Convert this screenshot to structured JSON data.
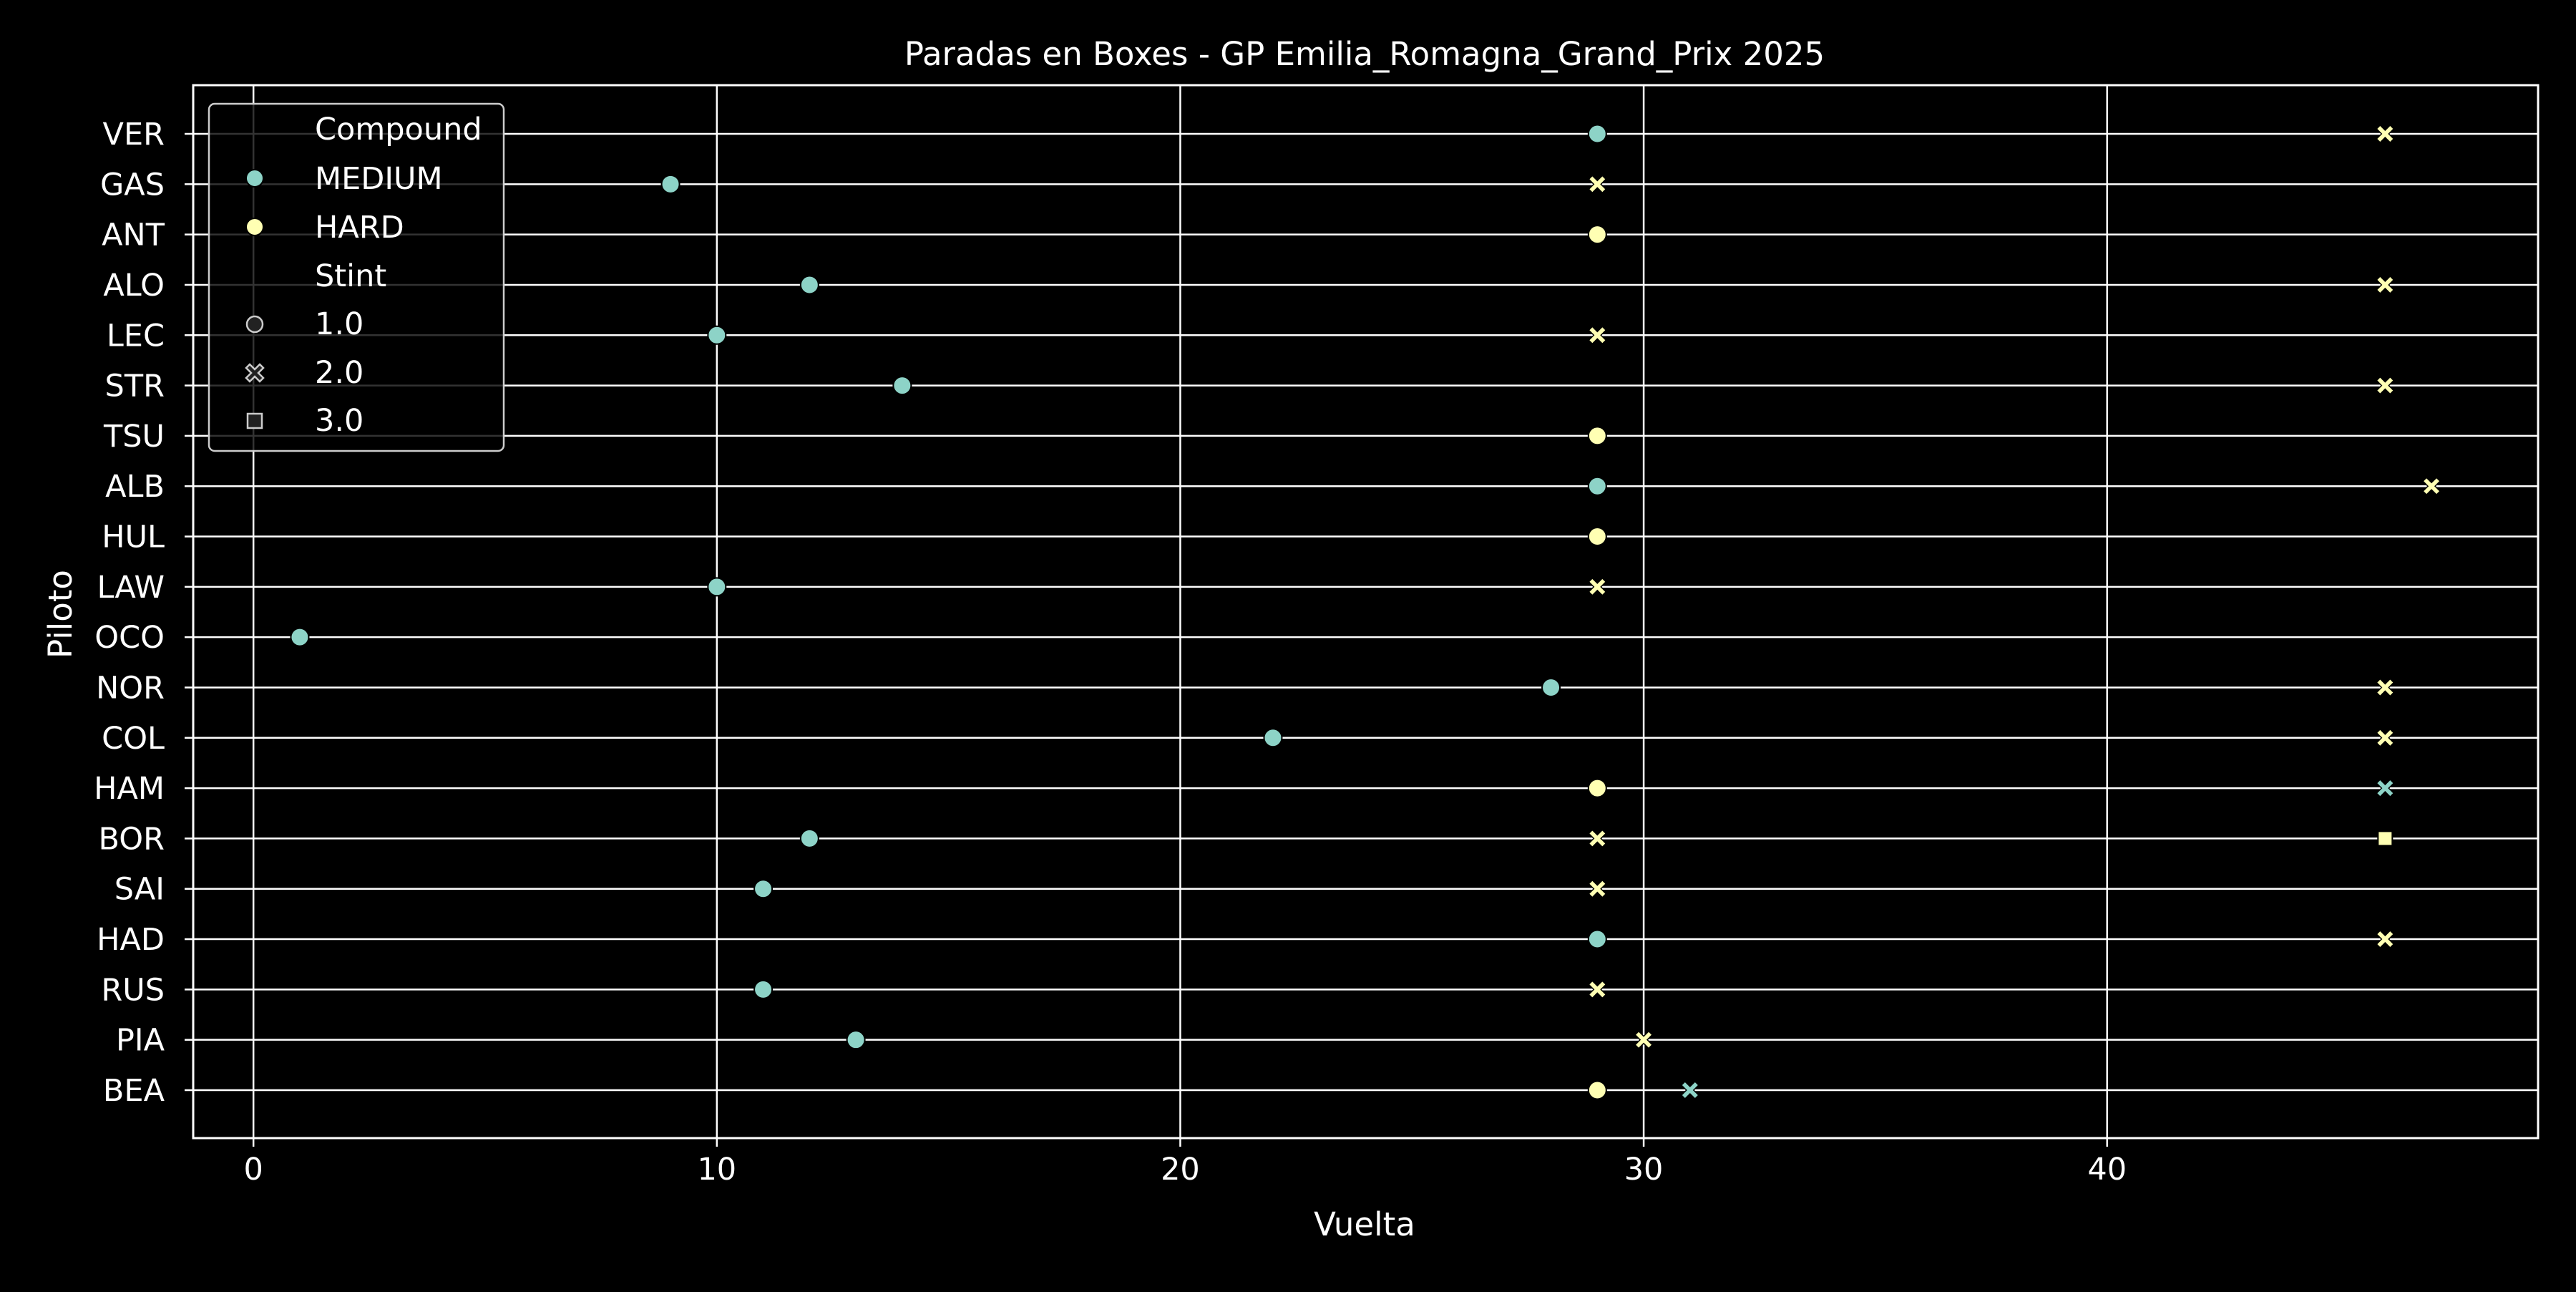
{
  "chart_data": {
    "type": "scatter",
    "title": "Paradas en Boxes - GP Emilia_Romagna_Grand_Prix 2025",
    "xlabel": "Vuelta",
    "ylabel": "Piloto",
    "xlim": [
      -1.3,
      49.3
    ],
    "xticks": [
      0,
      10,
      20,
      30,
      40
    ],
    "drivers": [
      "VER",
      "GAS",
      "ANT",
      "ALO",
      "LEC",
      "STR",
      "TSU",
      "ALB",
      "HUL",
      "LAW",
      "OCO",
      "NOR",
      "COL",
      "HAM",
      "BOR",
      "SAI",
      "HAD",
      "RUS",
      "PIA",
      "BEA"
    ],
    "grid": true,
    "legend": {
      "placement": "top-left",
      "hue_title": "Compound",
      "style_title": "Stint",
      "compounds": [
        {
          "name": "MEDIUM",
          "color": "#8dd3c7"
        },
        {
          "name": "HARD",
          "color": "#ffffb3"
        }
      ],
      "stints": [
        {
          "name": "1.0",
          "marker": "circle"
        },
        {
          "name": "2.0",
          "marker": "x"
        },
        {
          "name": "3.0",
          "marker": "square"
        }
      ]
    },
    "points": [
      {
        "driver": "VER",
        "lap": 29,
        "compound": "MEDIUM",
        "stint": "1.0"
      },
      {
        "driver": "VER",
        "lap": 46,
        "compound": "HARD",
        "stint": "2.0"
      },
      {
        "driver": "GAS",
        "lap": 9,
        "compound": "MEDIUM",
        "stint": "1.0"
      },
      {
        "driver": "GAS",
        "lap": 29,
        "compound": "HARD",
        "stint": "2.0"
      },
      {
        "driver": "ANT",
        "lap": 29,
        "compound": "HARD",
        "stint": "1.0"
      },
      {
        "driver": "ALO",
        "lap": 12,
        "compound": "MEDIUM",
        "stint": "1.0"
      },
      {
        "driver": "ALO",
        "lap": 46,
        "compound": "HARD",
        "stint": "2.0"
      },
      {
        "driver": "LEC",
        "lap": 10,
        "compound": "MEDIUM",
        "stint": "1.0"
      },
      {
        "driver": "LEC",
        "lap": 29,
        "compound": "HARD",
        "stint": "2.0"
      },
      {
        "driver": "STR",
        "lap": 14,
        "compound": "MEDIUM",
        "stint": "1.0"
      },
      {
        "driver": "STR",
        "lap": 46,
        "compound": "HARD",
        "stint": "2.0"
      },
      {
        "driver": "TSU",
        "lap": 29,
        "compound": "HARD",
        "stint": "1.0"
      },
      {
        "driver": "ALB",
        "lap": 29,
        "compound": "MEDIUM",
        "stint": "1.0"
      },
      {
        "driver": "ALB",
        "lap": 47,
        "compound": "HARD",
        "stint": "2.0"
      },
      {
        "driver": "HUL",
        "lap": 29,
        "compound": "HARD",
        "stint": "1.0"
      },
      {
        "driver": "LAW",
        "lap": 10,
        "compound": "MEDIUM",
        "stint": "1.0"
      },
      {
        "driver": "LAW",
        "lap": 29,
        "compound": "HARD",
        "stint": "2.0"
      },
      {
        "driver": "OCO",
        "lap": 1,
        "compound": "MEDIUM",
        "stint": "1.0"
      },
      {
        "driver": "NOR",
        "lap": 28,
        "compound": "MEDIUM",
        "stint": "1.0"
      },
      {
        "driver": "NOR",
        "lap": 46,
        "compound": "HARD",
        "stint": "2.0"
      },
      {
        "driver": "COL",
        "lap": 22,
        "compound": "MEDIUM",
        "stint": "1.0"
      },
      {
        "driver": "COL",
        "lap": 46,
        "compound": "HARD",
        "stint": "2.0"
      },
      {
        "driver": "HAM",
        "lap": 29,
        "compound": "HARD",
        "stint": "1.0"
      },
      {
        "driver": "HAM",
        "lap": 46,
        "compound": "MEDIUM",
        "stint": "2.0"
      },
      {
        "driver": "BOR",
        "lap": 12,
        "compound": "MEDIUM",
        "stint": "1.0"
      },
      {
        "driver": "BOR",
        "lap": 29,
        "compound": "HARD",
        "stint": "2.0"
      },
      {
        "driver": "BOR",
        "lap": 46,
        "compound": "HARD",
        "stint": "3.0"
      },
      {
        "driver": "SAI",
        "lap": 11,
        "compound": "MEDIUM",
        "stint": "1.0"
      },
      {
        "driver": "SAI",
        "lap": 29,
        "compound": "HARD",
        "stint": "2.0"
      },
      {
        "driver": "HAD",
        "lap": 29,
        "compound": "MEDIUM",
        "stint": "1.0"
      },
      {
        "driver": "HAD",
        "lap": 46,
        "compound": "HARD",
        "stint": "2.0"
      },
      {
        "driver": "RUS",
        "lap": 11,
        "compound": "MEDIUM",
        "stint": "1.0"
      },
      {
        "driver": "RUS",
        "lap": 29,
        "compound": "HARD",
        "stint": "2.0"
      },
      {
        "driver": "PIA",
        "lap": 13,
        "compound": "MEDIUM",
        "stint": "1.0"
      },
      {
        "driver": "PIA",
        "lap": 30,
        "compound": "HARD",
        "stint": "2.0"
      },
      {
        "driver": "BEA",
        "lap": 29,
        "compound": "HARD",
        "stint": "1.0"
      },
      {
        "driver": "BEA",
        "lap": 31,
        "compound": "MEDIUM",
        "stint": "2.0"
      }
    ]
  }
}
